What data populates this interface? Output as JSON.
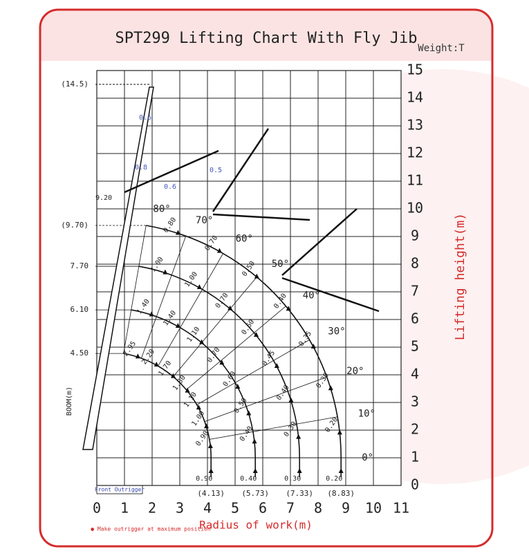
{
  "header": {
    "title": "SPT299 Lifting Chart With Fly Jib",
    "unit": "Weight:T"
  },
  "chart_data": {
    "type": "lifting-chart",
    "xlabel": "Radius of work(m)",
    "ylabel": "Lifting height(m)",
    "xlim": [
      0,
      11
    ],
    "ylim": [
      0,
      15
    ],
    "xticks": [
      0,
      1,
      2,
      3,
      4,
      5,
      6,
      7,
      8,
      9,
      10,
      11
    ],
    "yticks": [
      0,
      1,
      2,
      3,
      4,
      5,
      6,
      7,
      8,
      9,
      10,
      11,
      12,
      13,
      14,
      15
    ],
    "grid": true,
    "angles": [
      "80°",
      "70°",
      "60°",
      "50°",
      "40°",
      "30°",
      "20°",
      "10°",
      "0°"
    ],
    "booms": [
      {
        "boom_label": "4.50",
        "radius_label": "(4.13)",
        "loads": [
          "2.95",
          "2.20",
          "1.70",
          "1.30",
          "1.10",
          "1.00",
          "0.90",
          "0.90"
        ]
      },
      {
        "boom_label": "6.10",
        "radius_label": "(5.73)",
        "loads": [
          "1.40",
          "1.40",
          "1.10",
          "0.70",
          "0.60",
          "0.50",
          "0.40",
          "0.40"
        ]
      },
      {
        "boom_label": "7.70",
        "radius_label": "(7.33)",
        "loads": [
          "1.00",
          "1.00",
          "0.70",
          "0.60",
          "0.45",
          "0.40",
          "0.30",
          "0.30"
        ]
      },
      {
        "boom_label": "(9.70)",
        "radius_label": "(8.83)",
        "loads": [
          "0.80",
          "0.70",
          "0.50",
          "0.40",
          "0.35",
          "0.30",
          "0.20",
          "0.20"
        ]
      }
    ],
    "max_boom_label": "(14.5)",
    "boom_80_label": "9.20",
    "boom_axis_label": "BOOM(m)",
    "jib_loads": [
      "0.6",
      "0.8",
      "0.5",
      "0.6"
    ],
    "outrigger": "Front Outrigger",
    "note": "● Make outrigger at maximum position"
  }
}
